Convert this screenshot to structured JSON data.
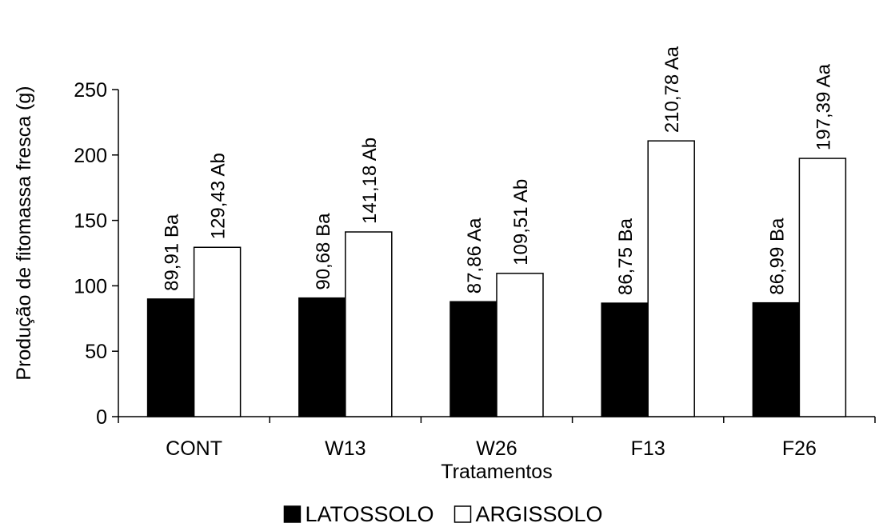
{
  "chart_data": {
    "type": "bar",
    "categories": [
      "CONT",
      "W13",
      "W26",
      "F13",
      "F26"
    ],
    "series": [
      {
        "name": "LATOSSOLO",
        "color": "#000000",
        "values": [
          89.91,
          90.68,
          87.86,
          86.75,
          86.99
        ],
        "labels": [
          "89,91 Ba",
          "90,68 Ba",
          "87,86 Aa",
          "86,75 Ba",
          "86,99 Ba"
        ]
      },
      {
        "name": "ARGISSOLO",
        "color": "#ffffff",
        "values": [
          129.43,
          141.18,
          109.51,
          210.78,
          197.39
        ],
        "labels": [
          "129,43 Ab",
          "141,18 Ab",
          "109,51 Ab",
          "210,78 Aa",
          "197,39 Aa"
        ]
      }
    ],
    "xlabel": "Tratamentos",
    "ylabel": "Produção de fitomassa fresca (g)",
    "ylim": [
      0,
      250
    ],
    "yticks": [
      "0",
      "50",
      "100",
      "150",
      "200",
      "250"
    ],
    "grid": false,
    "legend_position": "bottom"
  }
}
